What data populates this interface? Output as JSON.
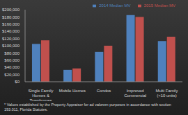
{
  "chart_data": {
    "type": "bar",
    "categories": [
      "Single Family Homes & Townhomes",
      "Mobile Homes",
      "Condos",
      "Improved Commercial",
      "Multi Family (<10 units)"
    ],
    "series": [
      {
        "name": "2014 Median MV",
        "color": "#4f81bd",
        "values": [
          105000,
          33000,
          83000,
          185000,
          113000
        ]
      },
      {
        "name": "2015 Median MV",
        "color": "#c0504d",
        "values": [
          115000,
          37000,
          100000,
          180000,
          125000
        ]
      }
    ],
    "ylim": [
      0,
      200000
    ],
    "yticks": [
      {
        "value": 0,
        "label": "$0"
      },
      {
        "value": 20000,
        "label": "$20,000"
      },
      {
        "value": 40000,
        "label": "$40,000"
      },
      {
        "value": 60000,
        "label": "$60,000"
      },
      {
        "value": 80000,
        "label": "$80,000"
      },
      {
        "value": 100000,
        "label": "$100,000"
      },
      {
        "value": 120000,
        "label": "$120,000"
      },
      {
        "value": 140000,
        "label": "$140,000"
      },
      {
        "value": 160000,
        "label": "$160,000"
      },
      {
        "value": 180000,
        "label": "$180,000"
      },
      {
        "value": 200000,
        "label": "$200,000"
      }
    ],
    "grid": false,
    "legend": "upper right",
    "annotation": "* Values established by the Property Appraiser for ad valorem purposes in accordance with section 193.011, Florida Statutes."
  }
}
